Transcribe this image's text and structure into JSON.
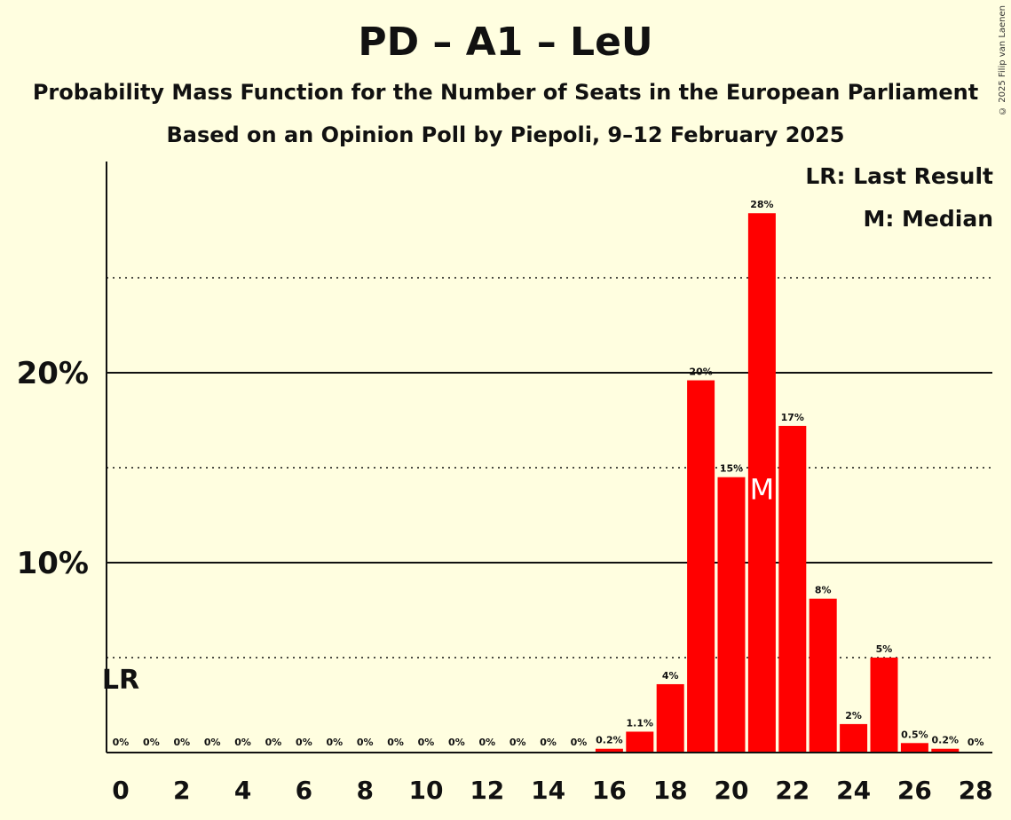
{
  "copyright": "© 2025 Filip van Laenen",
  "legend": {
    "last_result": "LR: Last Result",
    "median": "M: Median"
  },
  "chart_data": {
    "type": "bar",
    "title": "PD – A1 – LeU",
    "subtitle1": "Probability Mass Function for the Number of Seats in the European Parliament",
    "subtitle2": "Based on an Opinion Poll by Piepoli, 9–12 February 2025",
    "x": [
      0,
      1,
      2,
      3,
      4,
      5,
      6,
      7,
      8,
      9,
      10,
      11,
      12,
      13,
      14,
      15,
      16,
      17,
      18,
      19,
      20,
      21,
      22,
      23,
      24,
      25,
      26,
      27,
      28
    ],
    "values": [
      0,
      0,
      0,
      0,
      0,
      0,
      0,
      0,
      0,
      0,
      0,
      0,
      0,
      0,
      0,
      0,
      0.2,
      1.1,
      3.6,
      19.6,
      14.5,
      28.4,
      17.2,
      8.1,
      1.5,
      5.0,
      0.5,
      0.2,
      0
    ],
    "labels": [
      "0%",
      "0%",
      "0%",
      "0%",
      "0%",
      "0%",
      "0%",
      "0%",
      "0%",
      "0%",
      "0%",
      "0%",
      "0%",
      "0%",
      "0%",
      "0%",
      "0.2%",
      "1.1%",
      "4%",
      "20%",
      "15%",
      "28%",
      "17%",
      "8%",
      "2%",
      "5%",
      "0.5%",
      "0.2%",
      "0%"
    ],
    "xticks": [
      0,
      2,
      4,
      6,
      8,
      10,
      12,
      14,
      16,
      18,
      20,
      22,
      24,
      26,
      28
    ],
    "yticks": [
      {
        "value": 10,
        "label": "10%"
      },
      {
        "value": 20,
        "label": "20%"
      }
    ],
    "dotted_gridlines": [
      5,
      15,
      25
    ],
    "ylim": [
      0,
      31
    ],
    "last_result": 0,
    "last_result_marker": "LR",
    "median": 21,
    "median_marker": "M",
    "bar_color": "#FF0000"
  }
}
